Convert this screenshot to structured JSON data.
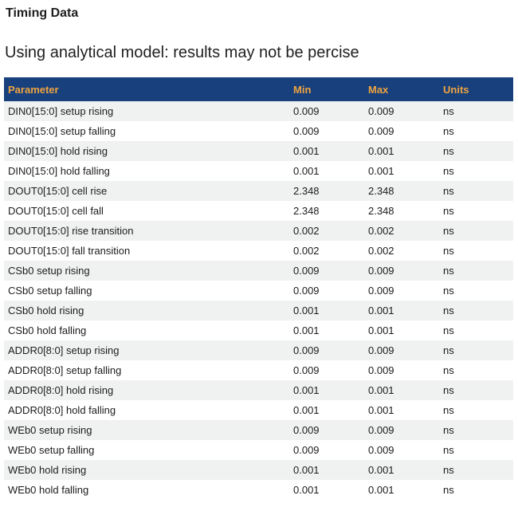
{
  "page": {
    "title": "Timing Data",
    "subtitle": "Using analytical model: results may not be percise"
  },
  "table": {
    "columns": [
      "Parameter",
      "Min",
      "Max",
      "Units"
    ],
    "rows": [
      {
        "parameter": "DIN0[15:0] setup rising",
        "min": "0.009",
        "max": "0.009",
        "units": "ns"
      },
      {
        "parameter": "DIN0[15:0] setup falling",
        "min": "0.009",
        "max": "0.009",
        "units": "ns"
      },
      {
        "parameter": "DIN0[15:0] hold rising",
        "min": "0.001",
        "max": "0.001",
        "units": "ns"
      },
      {
        "parameter": "DIN0[15:0] hold falling",
        "min": "0.001",
        "max": "0.001",
        "units": "ns"
      },
      {
        "parameter": "DOUT0[15:0] cell rise",
        "min": "2.348",
        "max": "2.348",
        "units": "ns"
      },
      {
        "parameter": "DOUT0[15:0] cell fall",
        "min": "2.348",
        "max": "2.348",
        "units": "ns"
      },
      {
        "parameter": "DOUT0[15:0] rise transition",
        "min": "0.002",
        "max": "0.002",
        "units": "ns"
      },
      {
        "parameter": "DOUT0[15:0] fall transition",
        "min": "0.002",
        "max": "0.002",
        "units": "ns"
      },
      {
        "parameter": "CSb0 setup rising",
        "min": "0.009",
        "max": "0.009",
        "units": "ns"
      },
      {
        "parameter": "CSb0 setup falling",
        "min": "0.009",
        "max": "0.009",
        "units": "ns"
      },
      {
        "parameter": "CSb0 hold rising",
        "min": "0.001",
        "max": "0.001",
        "units": "ns"
      },
      {
        "parameter": "CSb0 hold falling",
        "min": "0.001",
        "max": "0.001",
        "units": "ns"
      },
      {
        "parameter": "ADDR0[8:0] setup rising",
        "min": "0.009",
        "max": "0.009",
        "units": "ns"
      },
      {
        "parameter": "ADDR0[8:0] setup falling",
        "min": "0.009",
        "max": "0.009",
        "units": "ns"
      },
      {
        "parameter": "ADDR0[8:0] hold rising",
        "min": "0.001",
        "max": "0.001",
        "units": "ns"
      },
      {
        "parameter": "ADDR0[8:0] hold falling",
        "min": "0.001",
        "max": "0.001",
        "units": "ns"
      },
      {
        "parameter": "WEb0 setup rising",
        "min": "0.009",
        "max": "0.009",
        "units": "ns"
      },
      {
        "parameter": "WEb0 setup falling",
        "min": "0.009",
        "max": "0.009",
        "units": "ns"
      },
      {
        "parameter": "WEb0 hold rising",
        "min": "0.001",
        "max": "0.001",
        "units": "ns"
      },
      {
        "parameter": "WEb0 hold falling",
        "min": "0.001",
        "max": "0.001",
        "units": "ns"
      }
    ]
  },
  "colors": {
    "header_bg": "#18407d",
    "header_text": "#efa440",
    "row_stripe": "#f0f1f1",
    "row_alt": "#ffffff",
    "body_text": "#1c1c1c"
  }
}
